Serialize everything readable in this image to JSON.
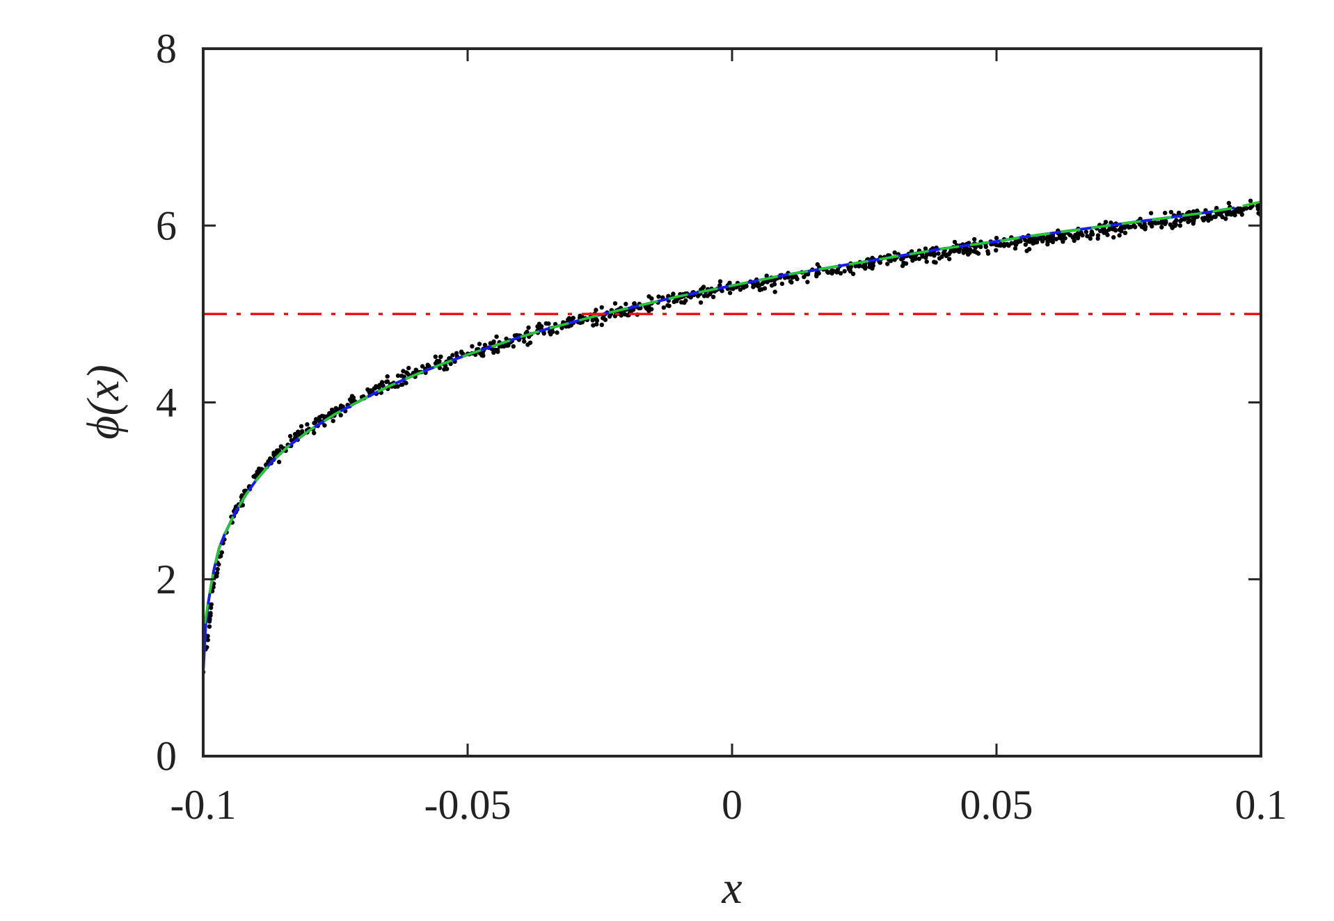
{
  "chart_data": {
    "type": "line",
    "xlabel": "x",
    "ylabel": "ϕ(x)",
    "xlim": [
      -0.1,
      0.1
    ],
    "ylim": [
      0,
      8
    ],
    "xticks": [
      -0.1,
      -0.05,
      0,
      0.05,
      0.1
    ],
    "xtick_labels": [
      "-0.1",
      "-0.05",
      "0",
      "0.05",
      "0.1"
    ],
    "yticks": [
      0,
      2,
      4,
      6,
      8
    ],
    "ytick_labels": [
      "0",
      "2",
      "4",
      "6",
      "8"
    ],
    "grid": false,
    "box": true,
    "series": [
      {
        "style": "scatter",
        "color": "#000000",
        "x": [
          -0.1,
          -0.098,
          -0.096,
          -0.094,
          -0.092,
          -0.09,
          -0.088,
          -0.086,
          -0.084,
          -0.082,
          -0.08,
          -0.078,
          -0.076,
          -0.074,
          -0.072,
          -0.07,
          -0.068,
          -0.066,
          -0.064,
          -0.062,
          -0.06,
          -0.058,
          -0.056,
          -0.054,
          -0.052,
          -0.05,
          -0.048,
          -0.046,
          -0.044,
          -0.042,
          -0.04,
          -0.038,
          -0.036,
          -0.034,
          -0.032,
          -0.03,
          -0.028,
          -0.026,
          -0.024,
          -0.022,
          -0.02,
          -0.018,
          -0.016,
          -0.014,
          -0.012,
          -0.01,
          -0.008,
          -0.006,
          -0.004,
          -0.002,
          0,
          0.002,
          0.004,
          0.006,
          0.008,
          0.01,
          0.012,
          0.014,
          0.016,
          0.018,
          0.02,
          0.022,
          0.024,
          0.026,
          0.028,
          0.03,
          0.032,
          0.034,
          0.036,
          0.038,
          0.04,
          0.042,
          0.044,
          0.046,
          0.048,
          0.05,
          0.052,
          0.054,
          0.056,
          0.058,
          0.06,
          0.062,
          0.064,
          0.066,
          0.068,
          0.07,
          0.072,
          0.074,
          0.076,
          0.078,
          0.08,
          0.082,
          0.084,
          0.086,
          0.088,
          0.09,
          0.092,
          0.094,
          0.096,
          0.098,
          0.1
        ],
        "y": [
          0.95,
          1.95,
          2.45,
          2.75,
          3.0,
          3.15,
          3.3,
          3.42,
          3.52,
          3.63,
          3.7,
          3.8,
          3.86,
          3.93,
          4.02,
          4.06,
          4.12,
          4.19,
          4.22,
          4.29,
          4.33,
          4.38,
          4.44,
          4.46,
          4.52,
          4.55,
          4.6,
          4.62,
          4.68,
          4.7,
          4.75,
          4.77,
          4.82,
          4.84,
          4.88,
          4.9,
          4.94,
          4.96,
          5.0,
          5.02,
          5.05,
          5.08,
          5.1,
          5.13,
          5.15,
          5.18,
          5.2,
          5.23,
          5.25,
          5.27,
          5.29,
          5.32,
          5.34,
          5.36,
          5.38,
          5.41,
          5.42,
          5.45,
          5.46,
          5.48,
          5.5,
          5.53,
          5.54,
          5.57,
          5.58,
          5.6,
          5.62,
          5.64,
          5.65,
          5.68,
          5.69,
          5.71,
          5.72,
          5.75,
          5.76,
          5.78,
          5.79,
          5.81,
          5.82,
          5.85,
          5.86,
          5.88,
          5.89,
          5.92,
          5.93,
          5.95,
          5.96,
          5.98,
          6.0,
          6.02,
          6.03,
          6.05,
          6.06,
          6.09,
          6.1,
          6.12,
          6.13,
          6.16,
          6.17,
          6.2,
          6.22
        ]
      },
      {
        "style": "line",
        "color": "#1a1aff",
        "x": [
          -0.1,
          -0.0995,
          -0.099,
          -0.098,
          -0.097,
          -0.096,
          -0.094,
          -0.092,
          -0.09,
          -0.087,
          -0.084,
          -0.08,
          -0.075,
          -0.07,
          -0.065,
          -0.06,
          -0.055,
          -0.05,
          -0.045,
          -0.04,
          -0.035,
          -0.03,
          -0.025,
          -0.02,
          -0.015,
          -0.01,
          -0.005,
          0,
          0.005,
          0.01,
          0.015,
          0.02,
          0.025,
          0.03,
          0.035,
          0.04,
          0.045,
          0.05,
          0.055,
          0.06,
          0.065,
          0.07,
          0.075,
          0.08,
          0.085,
          0.09,
          0.095
        ],
        "y": [
          0.95,
          1.5,
          1.75,
          2.1,
          2.35,
          2.5,
          2.75,
          2.95,
          3.12,
          3.33,
          3.5,
          3.68,
          3.87,
          4.03,
          4.18,
          4.31,
          4.43,
          4.54,
          4.64,
          4.74,
          4.83,
          4.91,
          4.99,
          5.06,
          5.13,
          5.2,
          5.26,
          5.32,
          5.38,
          5.44,
          5.49,
          5.54,
          5.59,
          5.64,
          5.69,
          5.74,
          5.78,
          5.82,
          5.87,
          5.91,
          5.95,
          5.99,
          6.03,
          6.07,
          6.11,
          6.15,
          6.2
        ]
      },
      {
        "style": "dashed",
        "color": "#22cc22",
        "x": [
          -0.0997,
          -0.099,
          -0.098,
          -0.097,
          -0.096,
          -0.094,
          -0.092,
          -0.09,
          -0.087,
          -0.084,
          -0.08,
          -0.075,
          -0.07,
          -0.065,
          -0.06,
          -0.055,
          -0.05,
          -0.045,
          -0.04,
          -0.035,
          -0.03,
          -0.025,
          -0.02,
          -0.015,
          -0.01,
          -0.005,
          0,
          0.005,
          0.01,
          0.015,
          0.02,
          0.025,
          0.03,
          0.035,
          0.04,
          0.045,
          0.05,
          0.055,
          0.06,
          0.065,
          0.07,
          0.075,
          0.08,
          0.085,
          0.09,
          0.095,
          0.1
        ],
        "y": [
          1.5,
          1.77,
          2.1,
          2.35,
          2.5,
          2.75,
          2.95,
          3.12,
          3.33,
          3.5,
          3.68,
          3.87,
          4.03,
          4.18,
          4.31,
          4.43,
          4.54,
          4.64,
          4.74,
          4.83,
          4.91,
          4.99,
          5.06,
          5.13,
          5.2,
          5.26,
          5.32,
          5.38,
          5.44,
          5.49,
          5.54,
          5.59,
          5.64,
          5.69,
          5.74,
          5.78,
          5.82,
          5.87,
          5.91,
          5.95,
          5.99,
          6.03,
          6.07,
          6.11,
          6.15,
          6.2,
          6.27
        ]
      },
      {
        "style": "dashdot",
        "color": "#ee1111",
        "x": [
          -0.1,
          0.1
        ],
        "y": [
          5.0,
          5.0
        ]
      }
    ]
  }
}
